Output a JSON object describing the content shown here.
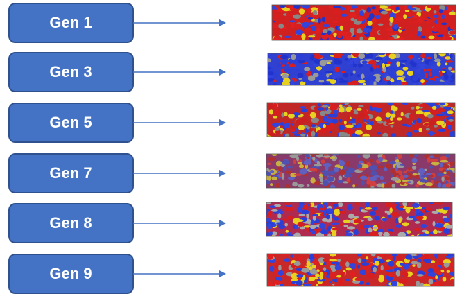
{
  "boxes": [
    {
      "label": "Gen 1"
    },
    {
      "label": "Gen 3"
    },
    {
      "label": "Gen 5"
    },
    {
      "label": "Gen 7"
    },
    {
      "label": "Gen 8"
    },
    {
      "label": "Gen 9"
    }
  ]
}
